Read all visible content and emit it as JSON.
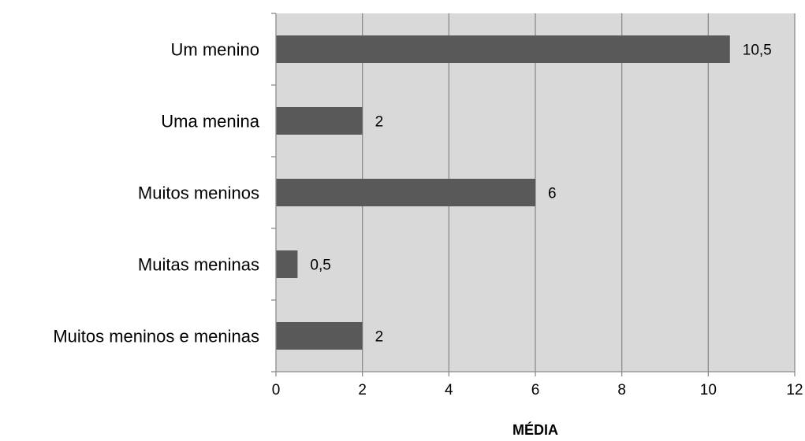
{
  "chart_data": {
    "type": "bar",
    "orientation": "horizontal",
    "categories": [
      "Um menino",
      "Uma menina",
      "Muitos meninos",
      "Muitas meninas",
      "Muitos meninos e meninas"
    ],
    "values": [
      10.5,
      2,
      6,
      0.5,
      2
    ],
    "data_labels": [
      "10,5",
      "2",
      "6",
      "0,5",
      "2"
    ],
    "xlabel": "MÉDIA",
    "xlim": [
      0,
      12
    ],
    "xticks": [
      0,
      2,
      4,
      6,
      8,
      10,
      12
    ],
    "xtick_labels": [
      "0",
      "2",
      "4",
      "6",
      "8",
      "10",
      "12"
    ],
    "grid": "vertical",
    "legend": "none",
    "colors": {
      "bar": "#595959",
      "plot_background": "#d9d9d9",
      "gridline": "#8c8c8c",
      "axis": "#8c8c8c"
    }
  }
}
